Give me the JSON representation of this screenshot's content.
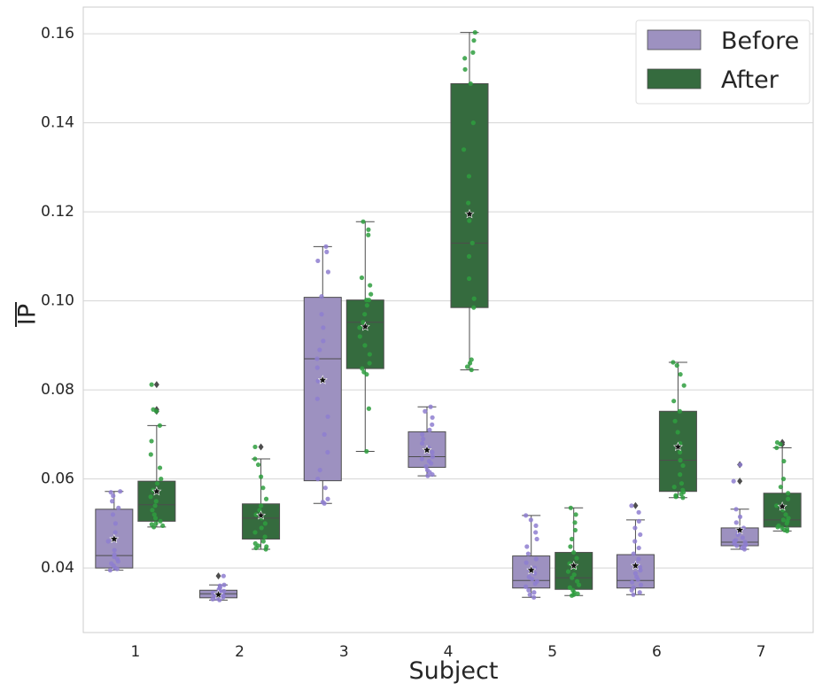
{
  "chart_data": {
    "type": "box",
    "xlabel": "Subject",
    "ylabel": "IP",
    "ylabel_overline": true,
    "ylim": [
      0.0255,
      0.166
    ],
    "yticks": [
      0.04,
      0.06,
      0.08,
      0.1,
      0.12,
      0.14,
      0.16
    ],
    "ytick_labels": [
      "0.04",
      "0.06",
      "0.08",
      "0.10",
      "0.12",
      "0.14",
      "0.16"
    ],
    "categories": [
      "1",
      "2",
      "3",
      "4",
      "5",
      "6",
      "7"
    ],
    "grid": "horizontal",
    "legend_position": "top-right",
    "series": [
      {
        "name": "Before",
        "color": "#9d91c0",
        "edge": "#4d4d4d",
        "point_color": "#8e7ed0",
        "boxes": [
          {
            "category": "1",
            "whisker_low": 0.0395,
            "q1": 0.04,
            "median": 0.0428,
            "q3": 0.0532,
            "whisker_high": 0.0572,
            "mean": 0.0465,
            "outliers": [],
            "points": [
              0.0395,
              0.0398,
              0.04,
              0.0405,
              0.041,
              0.0415,
              0.042,
              0.0425,
              0.043,
              0.044,
              0.046,
              0.048,
              0.05,
              0.052,
              0.0535,
              0.055,
              0.0562,
              0.057,
              0.0572
            ]
          },
          {
            "category": "2",
            "whisker_low": 0.0328,
            "q1": 0.0333,
            "median": 0.0342,
            "q3": 0.035,
            "whisker_high": 0.0362,
            "mean": 0.034,
            "outliers": [
              0.0382
            ],
            "points": [
              0.0328,
              0.033,
              0.0332,
              0.0334,
              0.0336,
              0.0338,
              0.034,
              0.0342,
              0.0344,
              0.0346,
              0.0348,
              0.035,
              0.0352,
              0.0356,
              0.036,
              0.0362,
              0.0382
            ]
          },
          {
            "category": "3",
            "whisker_low": 0.0545,
            "q1": 0.0596,
            "median": 0.087,
            "q3": 0.1008,
            "whisker_high": 0.1122,
            "mean": 0.0822,
            "outliers": [],
            "points": [
              0.0545,
              0.0548,
              0.0555,
              0.058,
              0.06,
              0.062,
              0.066,
              0.07,
              0.074,
              0.078,
              0.082,
              0.085,
              0.087,
              0.089,
              0.091,
              0.094,
              0.097,
              0.101,
              0.1065,
              0.109,
              0.111,
              0.1122
            ]
          },
          {
            "category": "4",
            "whisker_low": 0.0607,
            "q1": 0.0626,
            "median": 0.065,
            "q3": 0.0706,
            "whisker_high": 0.0762,
            "mean": 0.0665,
            "outliers": [],
            "points": [
              0.0607,
              0.061,
              0.0615,
              0.062,
              0.0628,
              0.0635,
              0.064,
              0.0645,
              0.065,
              0.066,
              0.067,
              0.068,
              0.069,
              0.07,
              0.071,
              0.0722,
              0.0738,
              0.0752,
              0.0762
            ]
          },
          {
            "category": "5",
            "whisker_low": 0.0334,
            "q1": 0.0355,
            "median": 0.0372,
            "q3": 0.0427,
            "whisker_high": 0.0518,
            "mean": 0.0395,
            "outliers": [],
            "points": [
              0.0334,
              0.034,
              0.0345,
              0.035,
              0.0358,
              0.0365,
              0.037,
              0.0375,
              0.038,
              0.0388,
              0.0395,
              0.04,
              0.0412,
              0.042,
              0.0432,
              0.0448,
              0.0465,
              0.048,
              0.0495,
              0.0508,
              0.0518
            ]
          },
          {
            "category": "6",
            "whisker_low": 0.034,
            "q1": 0.0355,
            "median": 0.0372,
            "q3": 0.043,
            "whisker_high": 0.0508,
            "mean": 0.0405,
            "outliers": [
              0.054
            ],
            "points": [
              0.034,
              0.0345,
              0.035,
              0.0356,
              0.0362,
              0.0368,
              0.0374,
              0.038,
              0.0388,
              0.0395,
              0.0402,
              0.041,
              0.042,
              0.0432,
              0.0445,
              0.046,
              0.0475,
              0.049,
              0.0505,
              0.0525,
              0.054
            ]
          },
          {
            "category": "7",
            "whisker_low": 0.0442,
            "q1": 0.045,
            "median": 0.0458,
            "q3": 0.049,
            "whisker_high": 0.0532,
            "mean": 0.0485,
            "outliers": [
              0.0595,
              0.0632
            ],
            "points": [
              0.0442,
              0.0445,
              0.0448,
              0.045,
              0.0452,
              0.0455,
              0.0458,
              0.046,
              0.0462,
              0.0468,
              0.0475,
              0.048,
              0.049,
              0.0502,
              0.0515,
              0.0532,
              0.0595,
              0.0632
            ]
          }
        ]
      },
      {
        "name": "After",
        "color": "#356b3e",
        "edge": "#4d4d4d",
        "point_color": "#2e9e3e",
        "boxes": [
          {
            "category": "1",
            "whisker_low": 0.0492,
            "q1": 0.0505,
            "median": 0.0542,
            "q3": 0.0595,
            "whisker_high": 0.072,
            "mean": 0.0572,
            "outliers": [
              0.0752,
              0.0756,
              0.0812
            ],
            "points": [
              0.0492,
              0.0495,
              0.0498,
              0.05,
              0.0505,
              0.0512,
              0.052,
              0.053,
              0.054,
              0.055,
              0.056,
              0.0575,
              0.059,
              0.06,
              0.0625,
              0.0655,
              0.0685,
              0.072,
              0.0752,
              0.0756,
              0.0812
            ]
          },
          {
            "category": "2",
            "whisker_low": 0.0442,
            "q1": 0.0465,
            "median": 0.0512,
            "q3": 0.0544,
            "whisker_high": 0.0645,
            "mean": 0.0518,
            "outliers": [
              0.0672
            ],
            "points": [
              0.0442,
              0.0445,
              0.0448,
              0.045,
              0.0455,
              0.046,
              0.047,
              0.048,
              0.049,
              0.05,
              0.0512,
              0.052,
              0.053,
              0.054,
              0.0555,
              0.058,
              0.0605,
              0.0632,
              0.0645,
              0.0672
            ]
          },
          {
            "category": "3",
            "whisker_low": 0.0662,
            "q1": 0.0848,
            "median": 0.0952,
            "q3": 0.1002,
            "whisker_high": 0.1178,
            "mean": 0.0942,
            "outliers": [],
            "points": [
              0.0662,
              0.0758,
              0.0835,
              0.084,
              0.0848,
              0.086,
              0.088,
              0.09,
              0.092,
              0.094,
              0.0952,
              0.097,
              0.099,
              0.1002,
              0.1002,
              0.1015,
              0.1035,
              0.1052,
              0.1148,
              0.116,
              0.1178
            ]
          },
          {
            "category": "4",
            "whisker_low": 0.0845,
            "q1": 0.0985,
            "median": 0.113,
            "q3": 0.1488,
            "whisker_high": 0.1603,
            "mean": 0.1195,
            "outliers": [],
            "points": [
              0.0845,
              0.0852,
              0.086,
              0.0868,
              0.0985,
              0.1005,
              0.105,
              0.11,
              0.113,
              0.118,
              0.122,
              0.128,
              0.134,
              0.14,
              0.1488,
              0.152,
              0.1545,
              0.1558,
              0.1585,
              0.1603
            ]
          },
          {
            "category": "5",
            "whisker_low": 0.0338,
            "q1": 0.0352,
            "median": 0.0378,
            "q3": 0.0435,
            "whisker_high": 0.0535,
            "mean": 0.0405,
            "outliers": [],
            "points": [
              0.0338,
              0.034,
              0.0342,
              0.0345,
              0.035,
              0.0356,
              0.0362,
              0.037,
              0.0378,
              0.0385,
              0.0392,
              0.04,
              0.041,
              0.0422,
              0.0435,
              0.0448,
              0.0465,
              0.0485,
              0.0502,
              0.052,
              0.0535
            ]
          },
          {
            "category": "6",
            "whisker_low": 0.0558,
            "q1": 0.0572,
            "median": 0.0642,
            "q3": 0.0752,
            "whisker_high": 0.0862,
            "mean": 0.0672,
            "outliers": [],
            "points": [
              0.0558,
              0.056,
              0.0563,
              0.0566,
              0.057,
              0.0575,
              0.0582,
              0.059,
              0.061,
              0.063,
              0.0642,
              0.066,
              0.068,
              0.0705,
              0.073,
              0.0752,
              0.0775,
              0.081,
              0.0835,
              0.0855,
              0.0862
            ]
          },
          {
            "category": "7",
            "whisker_low": 0.0483,
            "q1": 0.0492,
            "median": 0.0508,
            "q3": 0.0568,
            "whisker_high": 0.067,
            "mean": 0.0538,
            "outliers": [
              0.0678,
              0.0682
            ],
            "points": [
              0.0483,
              0.0485,
              0.0488,
              0.049,
              0.0492,
              0.0495,
              0.05,
              0.0505,
              0.0508,
              0.0512,
              0.052,
              0.053,
              0.054,
              0.0555,
              0.0568,
              0.0582,
              0.06,
              0.064,
              0.067,
              0.0678,
              0.0682
            ]
          }
        ]
      }
    ]
  }
}
